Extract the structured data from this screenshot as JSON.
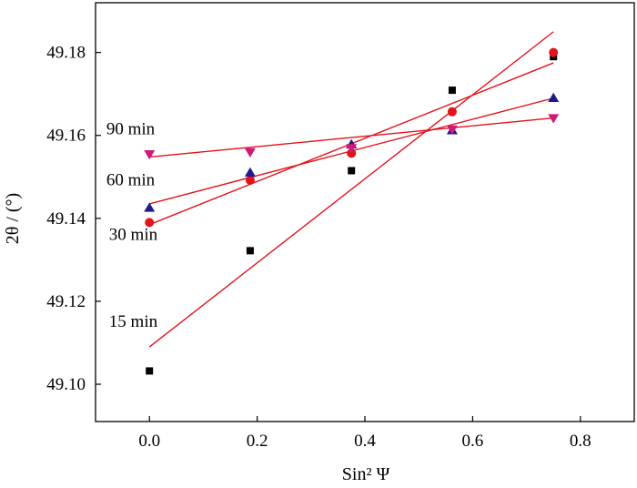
{
  "chart_data": {
    "type": "scatter",
    "title": "",
    "xlabel": "Sin² Ψ",
    "ylabel": "2θ / (°)",
    "xlim": [
      -0.1,
      0.9
    ],
    "ylim": [
      49.091,
      49.192
    ],
    "x_ticks": [
      0.0,
      0.2,
      0.4,
      0.6,
      0.8
    ],
    "x_tick_labels": [
      "0.0",
      "0.2",
      "0.4",
      "0.6",
      "0.8"
    ],
    "y_ticks": [
      49.1,
      49.12,
      49.14,
      49.16,
      49.18
    ],
    "y_tick_labels": [
      "49.10",
      "49.12",
      "49.14",
      "49.16",
      "49.18"
    ],
    "grid": false,
    "legend": "none",
    "series": [
      {
        "name": "15 min",
        "marker": "square",
        "color": "#000000",
        "x": [
          0.0,
          0.187,
          0.375,
          0.562,
          0.75
        ],
        "y": [
          49.1032,
          49.1322,
          49.1515,
          49.1709,
          49.179
        ],
        "fit": {
          "x": [
            0.0,
            0.75
          ],
          "y": [
            49.109,
            49.185
          ]
        }
      },
      {
        "name": "30 min",
        "marker": "circle",
        "color": "#e3121b",
        "x": [
          0.0,
          0.187,
          0.375,
          0.562,
          0.75
        ],
        "y": [
          49.139,
          49.1492,
          49.1557,
          49.1657,
          49.18
        ],
        "fit": {
          "x": [
            0.0,
            0.75
          ],
          "y": [
            49.1385,
            49.1775
          ]
        }
      },
      {
        "name": "60 min",
        "marker": "triangle-up",
        "color": "#1f1a8c",
        "x": [
          0.0,
          0.187,
          0.375,
          0.562,
          0.75
        ],
        "y": [
          49.1425,
          49.151,
          49.1578,
          49.1612,
          49.169
        ],
        "fit": {
          "x": [
            0.0,
            0.75
          ],
          "y": [
            49.1435,
            49.169
          ]
        }
      },
      {
        "name": "90 min",
        "marker": "triangle-down",
        "color": "#d0197a",
        "x": [
          0.0,
          0.187,
          0.375,
          0.562,
          0.75
        ],
        "y": [
          49.1555,
          49.156,
          49.157,
          49.1615,
          49.1642
        ],
        "fit": {
          "x": [
            0.0,
            0.75
          ],
          "y": [
            49.1548,
            49.1642
          ]
        }
      }
    ],
    "fit_line_color": "#e3121b",
    "annotations": [
      {
        "text": "90 min",
        "x": -0.08,
        "y": 49.1603
      },
      {
        "text": "60 min",
        "x": -0.08,
        "y": 49.148
      },
      {
        "text": "30 min",
        "x": -0.075,
        "y": 49.1348
      },
      {
        "text": "15 min",
        "x": -0.075,
        "y": 49.1138
      }
    ]
  }
}
